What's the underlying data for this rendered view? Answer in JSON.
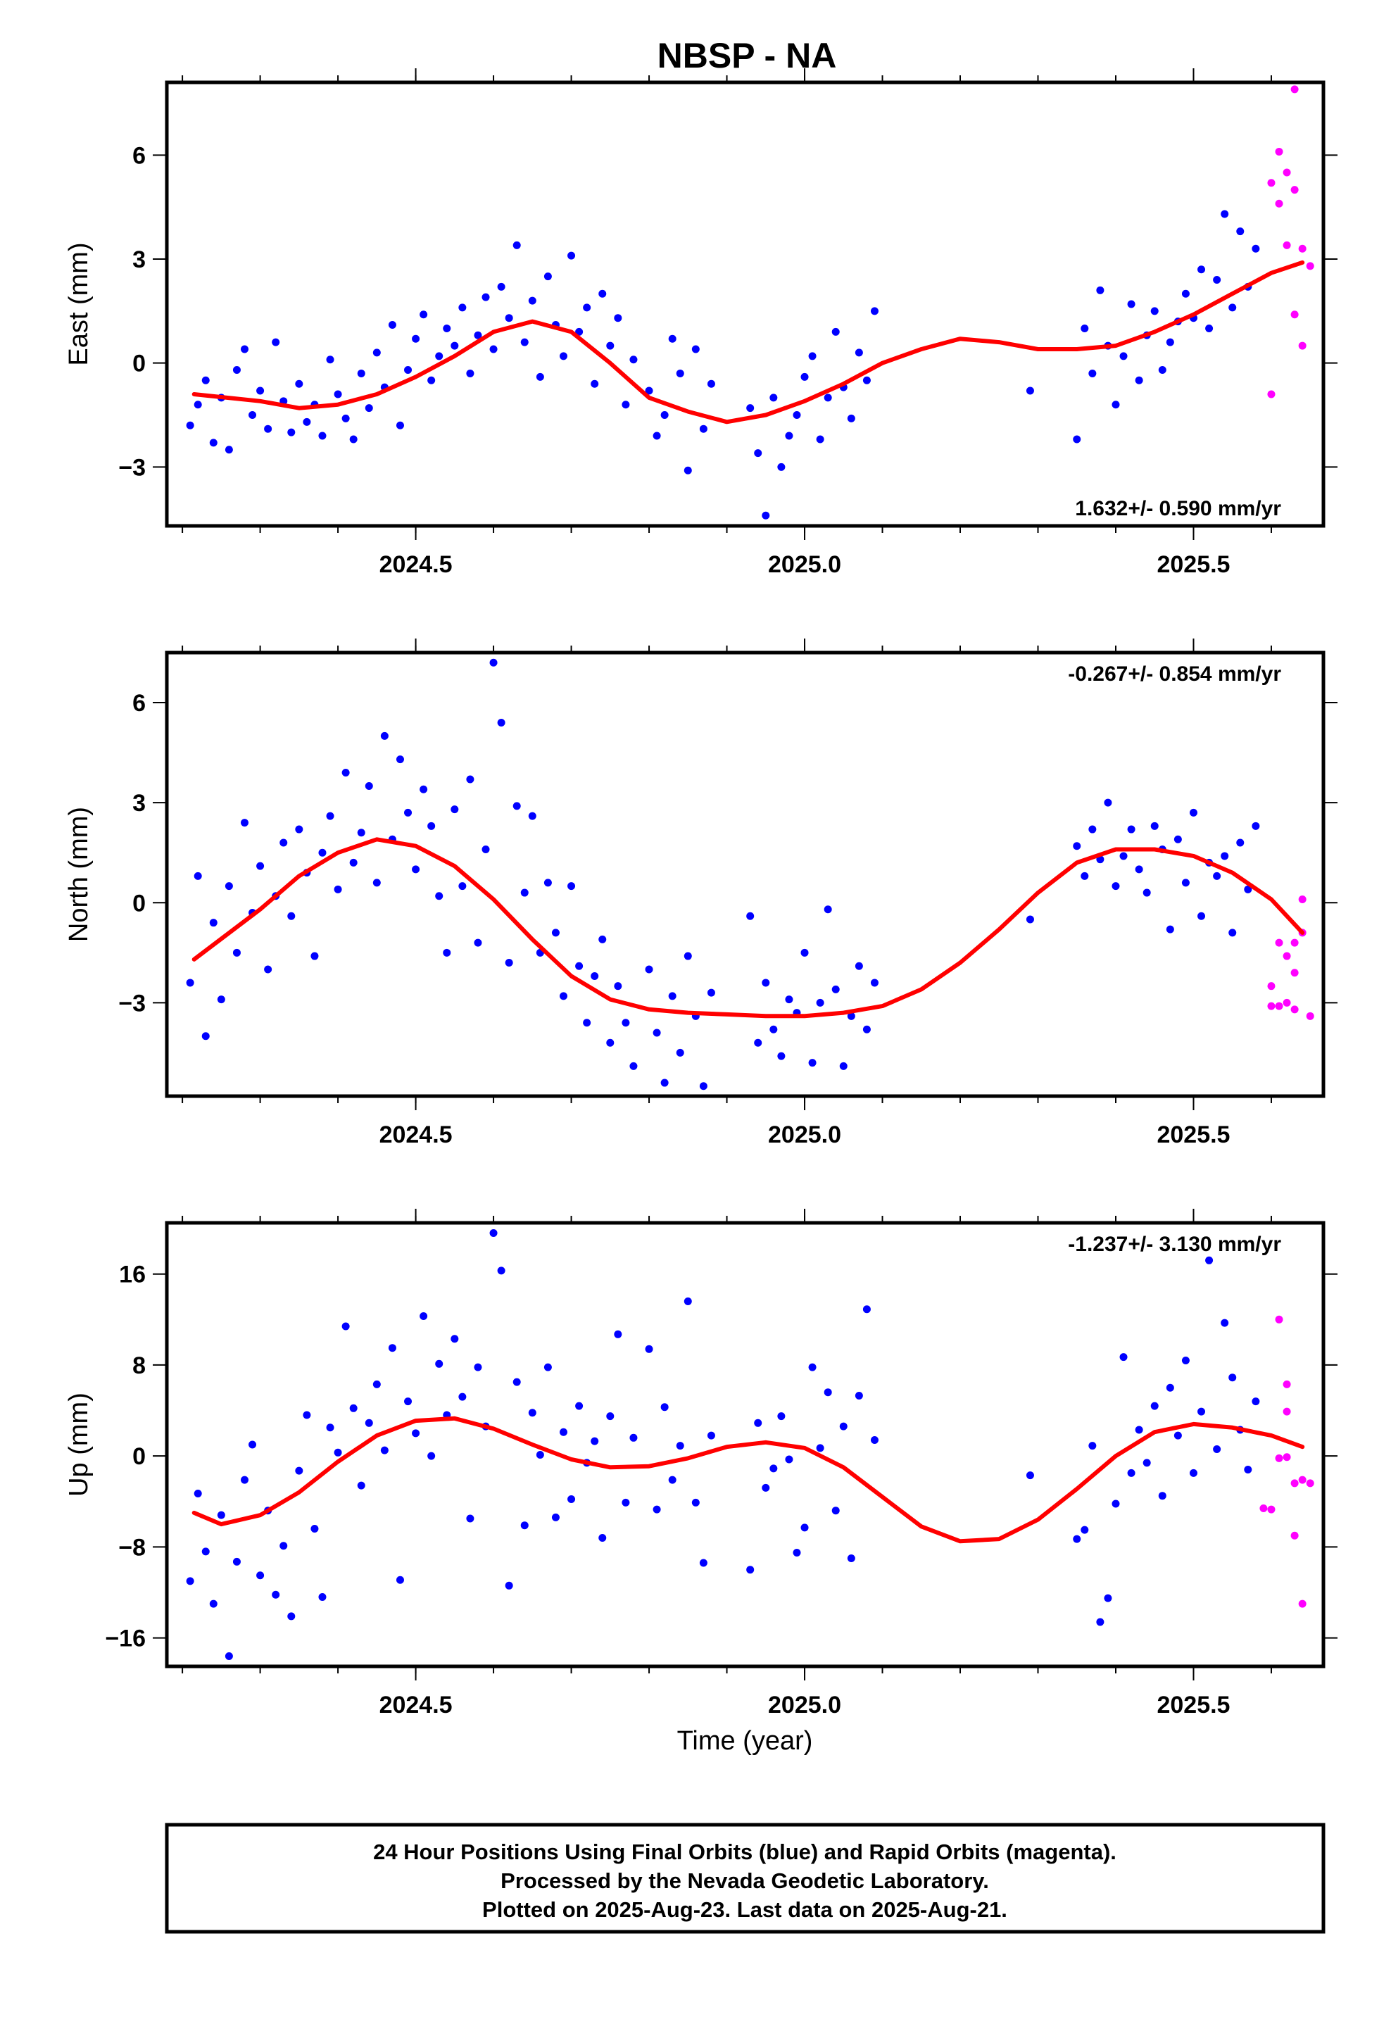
{
  "title": "NBSP - NA",
  "xlabel": "Time (year)",
  "footer": {
    "line1": "24 Hour Positions Using Final Orbits (blue) and Rapid Orbits (magenta).",
    "line2": "Processed by the Nevada Geodetic Laboratory.",
    "line3": "Plotted on 2025-Aug-23. Last data on 2025-Aug-21."
  },
  "colors": {
    "final": "#0000ff",
    "rapid": "#ff00ff",
    "fit": "#ff0000",
    "frame": "#000000"
  },
  "chart_data": [
    {
      "type": "scatter",
      "ylabel": "East (mm)",
      "rate_text": "1.632+/- 0.590 mm/yr",
      "xlim": [
        2024.18,
        2025.667
      ],
      "ylim": [
        -4.7,
        8.1
      ],
      "xticks": [
        2024.5,
        2025.0,
        2025.5
      ],
      "yticks": [
        -3,
        0,
        3,
        6
      ],
      "fit": {
        "x": [
          2024.215,
          2024.3,
          2024.35,
          2024.4,
          2024.45,
          2024.5,
          2024.55,
          2024.6,
          2024.65,
          2024.7,
          2024.75,
          2024.8,
          2024.85,
          2024.9,
          2024.95,
          2025.0,
          2025.05,
          2025.1,
          2025.15,
          2025.2,
          2025.25,
          2025.3,
          2025.35,
          2025.4,
          2025.45,
          2025.5,
          2025.55,
          2025.6,
          2025.64
        ],
        "y": [
          -0.9,
          -1.1,
          -1.3,
          -1.2,
          -0.9,
          -0.4,
          0.2,
          0.9,
          1.2,
          0.9,
          0.0,
          -1.0,
          -1.4,
          -1.7,
          -1.5,
          -1.1,
          -0.6,
          0.0,
          0.4,
          0.7,
          0.6,
          0.4,
          0.4,
          0.5,
          0.9,
          1.4,
          2.0,
          2.6,
          2.9
        ]
      },
      "final": {
        "x": [
          2024.21,
          2024.22,
          2024.23,
          2024.24,
          2024.25,
          2024.26,
          2024.27,
          2024.28,
          2024.29,
          2024.3,
          2024.31,
          2024.32,
          2024.33,
          2024.34,
          2024.35,
          2024.36,
          2024.37,
          2024.38,
          2024.39,
          2024.4,
          2024.41,
          2024.42,
          2024.43,
          2024.44,
          2024.45,
          2024.46,
          2024.47,
          2024.48,
          2024.49,
          2024.5,
          2024.51,
          2024.52,
          2024.53,
          2024.54,
          2024.55,
          2024.56,
          2024.57,
          2024.58,
          2024.59,
          2024.6,
          2024.61,
          2024.62,
          2024.63,
          2024.64,
          2024.65,
          2024.66,
          2024.67,
          2024.68,
          2024.69,
          2024.7,
          2024.71,
          2024.72,
          2024.73,
          2024.74,
          2024.75,
          2024.76,
          2024.77,
          2024.78,
          2024.8,
          2024.81,
          2024.82,
          2024.83,
          2024.84,
          2024.85,
          2024.86,
          2024.87,
          2024.88,
          2024.93,
          2024.94,
          2024.95,
          2024.96,
          2024.97,
          2024.98,
          2024.99,
          2025.0,
          2025.01,
          2025.02,
          2025.03,
          2025.04,
          2025.05,
          2025.06,
          2025.07,
          2025.08,
          2025.09,
          2025.29,
          2025.35,
          2025.36,
          2025.37,
          2025.38,
          2025.39,
          2025.4,
          2025.41,
          2025.42,
          2025.43,
          2025.44,
          2025.45,
          2025.46,
          2025.47,
          2025.48,
          2025.49,
          2025.5,
          2025.51,
          2025.52,
          2025.53,
          2025.54,
          2025.55,
          2025.56,
          2025.57,
          2025.58
        ],
        "y": [
          -1.8,
          -1.2,
          -0.5,
          -2.3,
          -1.0,
          -2.5,
          -0.2,
          0.4,
          -1.5,
          -0.8,
          -1.9,
          0.6,
          -1.1,
          -2.0,
          -0.6,
          -1.7,
          -1.2,
          -2.1,
          0.1,
          -0.9,
          -1.6,
          -2.2,
          -0.3,
          -1.3,
          0.3,
          -0.7,
          1.1,
          -1.8,
          -0.2,
          0.7,
          1.4,
          -0.5,
          0.2,
          1.0,
          0.5,
          1.6,
          -0.3,
          0.8,
          1.9,
          0.4,
          2.2,
          1.3,
          3.4,
          0.6,
          1.8,
          -0.4,
          2.5,
          1.1,
          0.2,
          3.1,
          0.9,
          1.6,
          -0.6,
          2.0,
          0.5,
          1.3,
          -1.2,
          0.1,
          -0.8,
          -2.1,
          -1.5,
          0.7,
          -0.3,
          -3.1,
          0.4,
          -1.9,
          -0.6,
          -1.3,
          -2.6,
          -4.4,
          -1.0,
          -3.0,
          -2.1,
          -1.5,
          -0.4,
          0.2,
          -2.2,
          -1.0,
          0.9,
          -0.7,
          -1.6,
          0.3,
          -0.5,
          1.5,
          -0.8,
          -2.2,
          1.0,
          -0.3,
          2.1,
          0.5,
          -1.2,
          0.2,
          1.7,
          -0.5,
          0.8,
          1.5,
          -0.2,
          0.6,
          1.2,
          2.0,
          1.3,
          2.7,
          1.0,
          2.4,
          4.3,
          1.6,
          3.8,
          2.2,
          3.3
        ]
      },
      "rapid": {
        "x": [
          2025.6,
          2025.61,
          2025.61,
          2025.62,
          2025.62,
          2025.63,
          2025.63,
          2025.64,
          2025.64,
          2025.65,
          2025.6,
          2025.63
        ],
        "y": [
          5.2,
          6.1,
          4.6,
          5.5,
          3.4,
          7.9,
          1.4,
          3.3,
          0.5,
          2.8,
          -0.9,
          5.0
        ]
      }
    },
    {
      "type": "scatter",
      "ylabel": "North (mm)",
      "rate_text": "-0.267+/- 0.854 mm/yr",
      "xlim": [
        2024.18,
        2025.667
      ],
      "ylim": [
        -5.8,
        7.5
      ],
      "xticks": [
        2024.5,
        2025.0,
        2025.5
      ],
      "yticks": [
        -3,
        0,
        3,
        6
      ],
      "fit": {
        "x": [
          2024.215,
          2024.3,
          2024.35,
          2024.4,
          2024.45,
          2024.5,
          2024.55,
          2024.6,
          2024.65,
          2024.7,
          2024.75,
          2024.8,
          2024.85,
          2024.9,
          2024.95,
          2025.0,
          2025.05,
          2025.1,
          2025.15,
          2025.2,
          2025.25,
          2025.3,
          2025.35,
          2025.4,
          2025.45,
          2025.5,
          2025.55,
          2025.6,
          2025.64
        ],
        "y": [
          -1.7,
          -0.2,
          0.8,
          1.5,
          1.9,
          1.7,
          1.1,
          0.1,
          -1.1,
          -2.2,
          -2.9,
          -3.2,
          -3.3,
          -3.35,
          -3.4,
          -3.4,
          -3.3,
          -3.1,
          -2.6,
          -1.8,
          -0.8,
          0.3,
          1.2,
          1.6,
          1.6,
          1.4,
          0.9,
          0.1,
          -0.9
        ]
      },
      "final": {
        "x": [
          2024.21,
          2024.22,
          2024.23,
          2024.24,
          2024.25,
          2024.26,
          2024.27,
          2024.28,
          2024.29,
          2024.3,
          2024.31,
          2024.32,
          2024.33,
          2024.34,
          2024.35,
          2024.36,
          2024.37,
          2024.38,
          2024.39,
          2024.4,
          2024.41,
          2024.42,
          2024.43,
          2024.44,
          2024.45,
          2024.46,
          2024.47,
          2024.48,
          2024.49,
          2024.5,
          2024.51,
          2024.52,
          2024.53,
          2024.54,
          2024.55,
          2024.56,
          2024.57,
          2024.58,
          2024.59,
          2024.6,
          2024.61,
          2024.62,
          2024.63,
          2024.64,
          2024.65,
          2024.66,
          2024.67,
          2024.68,
          2024.69,
          2024.7,
          2024.71,
          2024.72,
          2024.73,
          2024.74,
          2024.75,
          2024.76,
          2024.77,
          2024.78,
          2024.8,
          2024.81,
          2024.82,
          2024.83,
          2024.84,
          2024.85,
          2024.86,
          2024.87,
          2024.88,
          2024.93,
          2024.94,
          2024.95,
          2024.96,
          2024.97,
          2024.98,
          2024.99,
          2025.0,
          2025.01,
          2025.02,
          2025.03,
          2025.04,
          2025.05,
          2025.06,
          2025.07,
          2025.08,
          2025.09,
          2025.29,
          2025.35,
          2025.36,
          2025.37,
          2025.38,
          2025.39,
          2025.4,
          2025.41,
          2025.42,
          2025.43,
          2025.44,
          2025.45,
          2025.46,
          2025.47,
          2025.48,
          2025.49,
          2025.5,
          2025.51,
          2025.52,
          2025.53,
          2025.54,
          2025.55,
          2025.56,
          2025.57,
          2025.58
        ],
        "y": [
          -2.4,
          0.8,
          -4.0,
          -0.6,
          -2.9,
          0.5,
          -1.5,
          2.4,
          -0.3,
          1.1,
          -2.0,
          0.2,
          1.8,
          -0.4,
          2.2,
          0.9,
          -1.6,
          1.5,
          2.6,
          0.4,
          3.9,
          1.2,
          2.1,
          3.5,
          0.6,
          5.0,
          1.9,
          4.3,
          2.7,
          1.0,
          3.4,
          2.3,
          0.2,
          -1.5,
          2.8,
          0.5,
          3.7,
          -1.2,
          1.6,
          7.2,
          5.4,
          -1.8,
          2.9,
          0.3,
          2.6,
          -1.5,
          0.6,
          -0.9,
          -2.8,
          0.5,
          -1.9,
          -3.6,
          -2.2,
          -1.1,
          -4.2,
          -2.5,
          -3.6,
          -4.9,
          -2.0,
          -3.9,
          -5.4,
          -2.8,
          -4.5,
          -1.6,
          -3.4,
          -5.5,
          -2.7,
          -0.4,
          -4.2,
          -2.4,
          -3.8,
          -4.6,
          -2.9,
          -3.3,
          -1.5,
          -4.8,
          -3.0,
          -0.2,
          -2.6,
          -4.9,
          -3.4,
          -1.9,
          -3.8,
          -2.4,
          -0.5,
          1.7,
          0.8,
          2.2,
          1.3,
          3.0,
          0.5,
          1.4,
          2.2,
          1.0,
          0.3,
          2.3,
          1.6,
          -0.8,
          1.9,
          0.6,
          2.7,
          -0.4,
          1.2,
          0.8,
          1.4,
          -0.9,
          1.8,
          0.4,
          2.3
        ]
      },
      "rapid": {
        "x": [
          2025.6,
          2025.61,
          2025.61,
          2025.62,
          2025.62,
          2025.63,
          2025.63,
          2025.64,
          2025.64,
          2025.65,
          2025.6,
          2025.63
        ],
        "y": [
          -2.5,
          -3.1,
          -1.2,
          -3.0,
          -1.6,
          -2.1,
          -3.2,
          -0.9,
          0.1,
          -3.4,
          -3.1,
          -1.2
        ]
      }
    },
    {
      "type": "scatter",
      "ylabel": "Up (mm)",
      "rate_text": "-1.237+/- 3.130 mm/yr",
      "xlim": [
        2024.18,
        2025.667
      ],
      "ylim": [
        -18.5,
        20.5
      ],
      "xticks": [
        2024.5,
        2025.0,
        2025.5
      ],
      "yticks": [
        -16,
        -8,
        0,
        8,
        16
      ],
      "fit": {
        "x": [
          2024.215,
          2024.25,
          2024.3,
          2024.35,
          2024.4,
          2024.45,
          2024.5,
          2024.55,
          2024.6,
          2024.65,
          2024.7,
          2024.75,
          2024.8,
          2024.85,
          2024.9,
          2024.95,
          2025.0,
          2025.05,
          2025.1,
          2025.15,
          2025.2,
          2025.25,
          2025.3,
          2025.35,
          2025.4,
          2025.45,
          2025.5,
          2025.55,
          2025.6,
          2025.64
        ],
        "y": [
          -5.0,
          -6.0,
          -5.2,
          -3.2,
          -0.5,
          1.8,
          3.1,
          3.3,
          2.4,
          1.0,
          -0.3,
          -1.0,
          -0.9,
          -0.2,
          0.8,
          1.2,
          0.7,
          -1.0,
          -3.6,
          -6.2,
          -7.5,
          -7.3,
          -5.6,
          -2.9,
          0.0,
          2.1,
          2.8,
          2.5,
          1.8,
          0.8
        ]
      },
      "final": {
        "x": [
          2024.21,
          2024.22,
          2024.23,
          2024.24,
          2024.25,
          2024.26,
          2024.27,
          2024.28,
          2024.29,
          2024.3,
          2024.31,
          2024.32,
          2024.33,
          2024.34,
          2024.35,
          2024.36,
          2024.37,
          2024.38,
          2024.39,
          2024.4,
          2024.41,
          2024.42,
          2024.43,
          2024.44,
          2024.45,
          2024.46,
          2024.47,
          2024.48,
          2024.49,
          2024.5,
          2024.51,
          2024.52,
          2024.53,
          2024.54,
          2024.55,
          2024.56,
          2024.57,
          2024.58,
          2024.59,
          2024.6,
          2024.61,
          2024.62,
          2024.63,
          2024.64,
          2024.65,
          2024.66,
          2024.67,
          2024.68,
          2024.69,
          2024.7,
          2024.71,
          2024.72,
          2024.73,
          2024.74,
          2024.75,
          2024.76,
          2024.77,
          2024.78,
          2024.8,
          2024.81,
          2024.82,
          2024.83,
          2024.84,
          2024.85,
          2024.86,
          2024.87,
          2024.88,
          2024.93,
          2024.94,
          2024.95,
          2024.96,
          2024.97,
          2024.98,
          2024.99,
          2025.0,
          2025.01,
          2025.02,
          2025.03,
          2025.04,
          2025.05,
          2025.06,
          2025.07,
          2025.08,
          2025.09,
          2025.29,
          2025.35,
          2025.36,
          2025.37,
          2025.38,
          2025.39,
          2025.4,
          2025.41,
          2025.42,
          2025.43,
          2025.44,
          2025.45,
          2025.46,
          2025.47,
          2025.48,
          2025.49,
          2025.5,
          2025.51,
          2025.52,
          2025.53,
          2025.54,
          2025.55,
          2025.56,
          2025.57,
          2025.58
        ],
        "y": [
          -11.0,
          -3.3,
          -8.4,
          -13.0,
          -5.2,
          -17.6,
          -9.3,
          -2.1,
          1.0,
          -10.5,
          -4.8,
          -12.2,
          -7.9,
          -14.1,
          -1.3,
          3.6,
          -6.4,
          -12.4,
          2.5,
          0.3,
          11.4,
          4.2,
          -2.6,
          2.9,
          6.3,
          0.5,
          9.5,
          -10.9,
          4.8,
          2.0,
          12.3,
          0.0,
          8.1,
          3.6,
          10.3,
          5.2,
          -5.5,
          7.8,
          2.6,
          19.6,
          16.3,
          -11.4,
          6.5,
          -6.1,
          3.8,
          0.1,
          7.8,
          -5.4,
          2.1,
          -3.8,
          4.4,
          -0.6,
          1.3,
          -7.2,
          3.5,
          10.7,
          -4.1,
          1.6,
          9.4,
          -4.7,
          4.3,
          -2.1,
          0.9,
          13.6,
          -4.1,
          -9.4,
          1.8,
          -10.0,
          2.9,
          -2.8,
          -1.1,
          3.5,
          -0.3,
          -8.5,
          -6.3,
          7.8,
          0.7,
          5.6,
          -4.8,
          2.6,
          -9.0,
          5.3,
          12.9,
          1.4,
          -1.7,
          -7.3,
          -6.5,
          0.9,
          -14.6,
          -12.5,
          -4.2,
          8.7,
          -1.5,
          2.3,
          -0.6,
          4.4,
          -3.5,
          6.0,
          1.8,
          8.4,
          -1.5,
          3.9,
          17.2,
          0.6,
          11.7,
          6.9,
          2.3,
          -1.2,
          4.8
        ]
      },
      "rapid": {
        "x": [
          2025.59,
          2025.6,
          2025.61,
          2025.61,
          2025.62,
          2025.62,
          2025.63,
          2025.63,
          2025.64,
          2025.64,
          2025.65,
          2025.62
        ],
        "y": [
          -4.6,
          -4.7,
          12.0,
          -0.2,
          6.3,
          3.9,
          -2.4,
          -7.0,
          -13.0,
          -2.1,
          -2.4,
          -0.1
        ]
      }
    }
  ]
}
